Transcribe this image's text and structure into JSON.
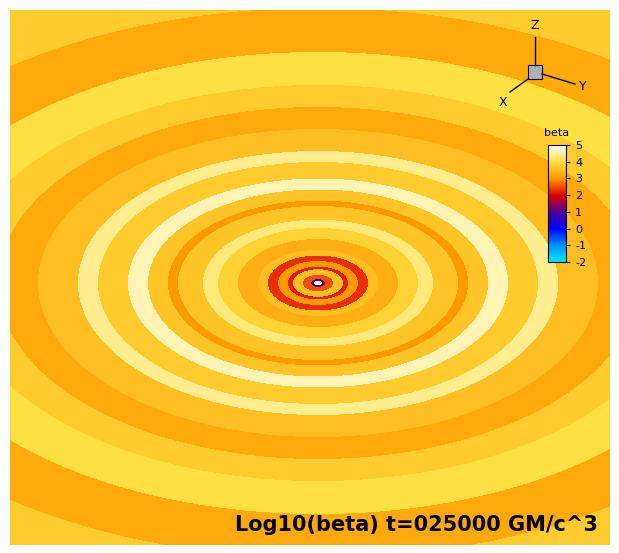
{
  "chart_data": {
    "type": "heatmap",
    "title": "Log10(beta) t=025000 GM/c^3",
    "colorbar_label": "beta",
    "clim": [
      -2,
      5
    ],
    "colorbar_ticks": [
      -2,
      -1,
      0,
      1,
      2,
      3,
      4,
      5
    ],
    "axes_triad": [
      "X",
      "Y",
      "Z"
    ],
    "tick_labels": false,
    "rings": {
      "r": [
        0,
        4,
        7,
        15,
        25,
        30,
        40,
        50,
        60,
        80,
        100,
        115,
        140,
        150,
        170,
        190,
        220,
        240,
        280,
        320,
        360,
        420,
        500,
        600,
        2000
      ],
      "log10_beta": [
        5,
        1,
        2.5,
        3.5,
        2.2,
        3.0,
        2.3,
        3.5,
        3.3,
        3.8,
        4.3,
        3.6,
        3.0,
        3.6,
        4.6,
        3.7,
        4.4,
        3.5,
        3.2,
        3.7,
        4.0,
        3.2,
        3.7,
        4.5
      ]
    }
  }
}
